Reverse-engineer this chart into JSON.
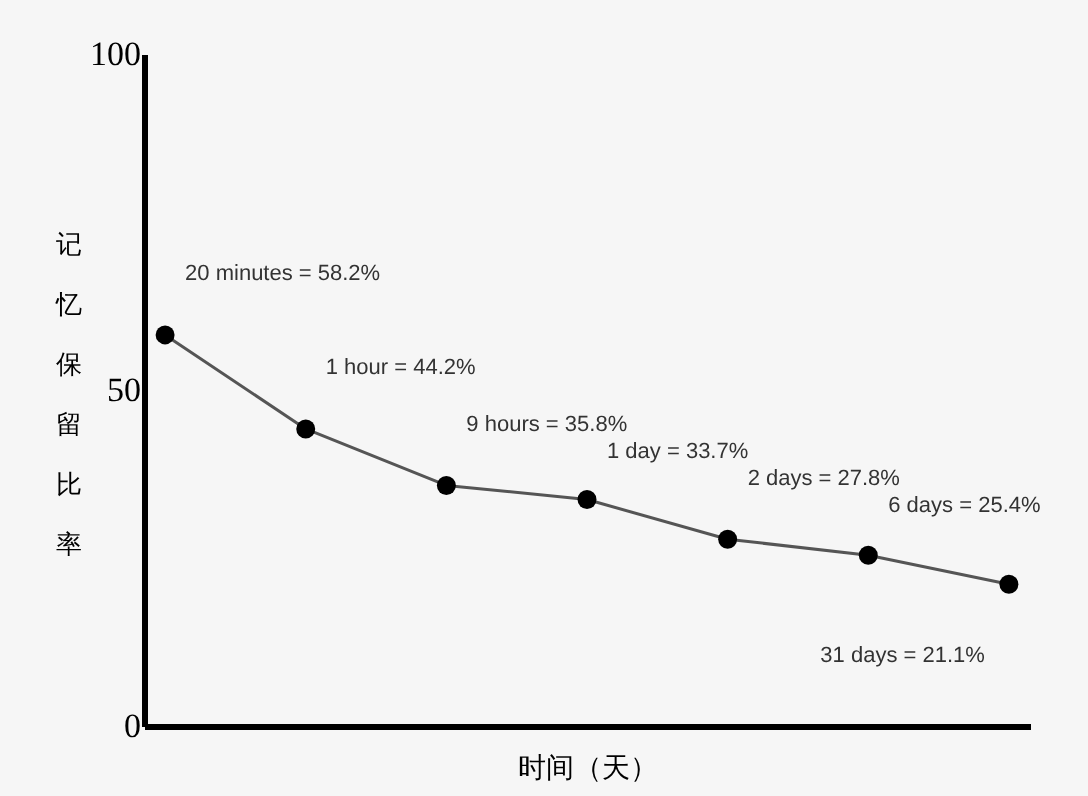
{
  "chart_data": {
    "type": "line",
    "xlabel": "时间（天）",
    "ylabel": "记忆保留比率",
    "categories": [
      null,
      null,
      null,
      null,
      null,
      null,
      null
    ],
    "series": [
      {
        "color": "#000000",
        "values": [
          58.2,
          44.2,
          35.8,
          33.7,
          27.8,
          25.4,
          21.1
        ]
      }
    ],
    "ylim": [
      0,
      100
    ],
    "yticks": [
      0,
      50,
      100
    ],
    "grid": false,
    "marker": "circle",
    "tick_labels": "y",
    "annotations": [
      "20 minutes = 58.2%",
      "1 hour = 44.2%",
      "9 hours = 35.8%",
      "1 day = 33.7%",
      "2 days = 27.8%",
      "6 days = 25.4%",
      "31 days = 21.1%"
    ]
  }
}
